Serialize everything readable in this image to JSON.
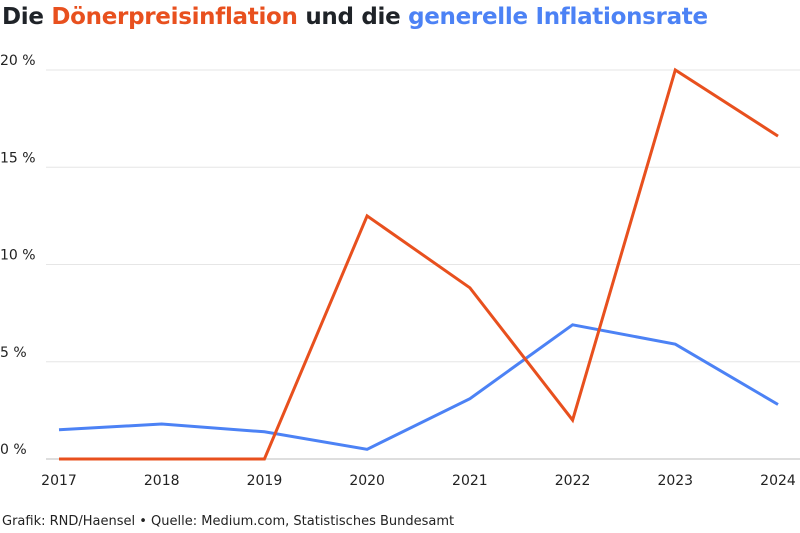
{
  "title": {
    "part1": "Die ",
    "part2": "Dönerpreisinflation",
    "part3": " und die ",
    "part4": "generelle Inflationsrate"
  },
  "footer": "Grafik: RND/Haensel • Quelle: Medium.com, Statistisches Bundesamt",
  "colors": {
    "doner": "#e8501e",
    "inflation": "#4c82f5",
    "title_dark": "#1f2328",
    "grid": "#e6e6e6"
  },
  "chart_data": {
    "type": "line",
    "x": [
      "2017",
      "2018",
      "2019",
      "2020",
      "2021",
      "2022",
      "2023",
      "2024"
    ],
    "ylim": [
      0,
      20
    ],
    "ytick_labels": [
      "0 %",
      "5 %",
      "10 %",
      "15 %",
      "20 %"
    ],
    "ytick_values": [
      0,
      5,
      10,
      15,
      20
    ],
    "grid": true,
    "series": [
      {
        "key": "doner",
        "color": "#e8501e",
        "values": [
          0,
          0,
          0,
          12.5,
          8.8,
          2.0,
          20.0,
          16.6
        ]
      },
      {
        "key": "inflation",
        "color": "#4c82f5",
        "values": [
          1.5,
          1.8,
          1.4,
          0.5,
          3.1,
          6.9,
          5.9,
          2.8
        ]
      }
    ]
  }
}
